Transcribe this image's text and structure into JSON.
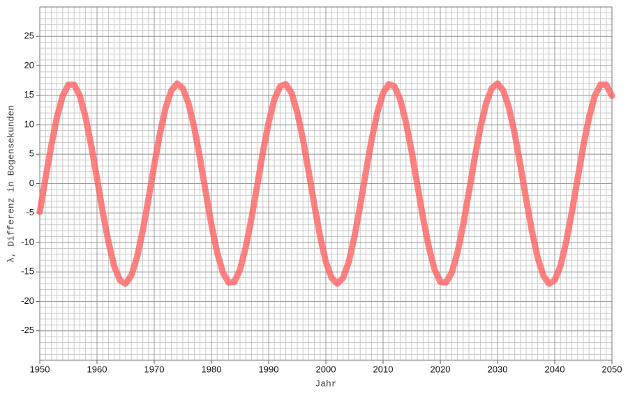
{
  "chart_data": {
    "type": "line",
    "x_label": "Jahr",
    "y_label": "λ, Differenz in Bogensekunden",
    "x": [
      1950,
      1951,
      1952,
      1953,
      1954,
      1955,
      1956,
      1957,
      1958,
      1959,
      1960,
      1961,
      1962,
      1963,
      1964,
      1965,
      1966,
      1967,
      1968,
      1969,
      1970,
      1971,
      1972,
      1973,
      1974,
      1975,
      1976,
      1977,
      1978,
      1979,
      1980,
      1981,
      1982,
      1983,
      1984,
      1985,
      1986,
      1987,
      1988,
      1989,
      1990,
      1991,
      1992,
      1993,
      1994,
      1995,
      1996,
      1997,
      1998,
      1999,
      2000,
      2001,
      2002,
      2003,
      2004,
      2005,
      2006,
      2007,
      2008,
      2009,
      2010,
      2011,
      2012,
      2013,
      2014,
      2015,
      2016,
      2017,
      2018,
      2019,
      2020,
      2021,
      2022,
      2023,
      2024,
      2025,
      2026,
      2027,
      2028,
      2029,
      2030,
      2031,
      2032,
      2033,
      2034,
      2035,
      2036,
      2037,
      2038,
      2039,
      2040,
      2041,
      2042,
      2043,
      2044,
      2045,
      2046,
      2047,
      2048,
      2049,
      2050
    ],
    "series": [
      {
        "color": "#ff5a5a",
        "values": [
          -4.8,
          0.9,
          6.4,
          11.3,
          14.9,
          16.8,
          16.8,
          14.9,
          11.3,
          6.4,
          0.9,
          -4.8,
          -9.9,
          -14.0,
          -16.4,
          -17.0,
          -15.6,
          -12.5,
          -8.0,
          -2.6,
          3.1,
          8.5,
          12.9,
          15.8,
          17.0,
          16.2,
          13.6,
          9.5,
          4.3,
          -1.4,
          -7.0,
          -11.7,
          -15.1,
          -16.8,
          -16.7,
          -14.6,
          -10.8,
          -5.9,
          -0.3,
          5.4,
          10.4,
          14.3,
          16.5,
          16.9,
          15.4,
          12.1,
          7.5,
          2.0,
          -3.7,
          -9.0,
          -13.3,
          -16.0,
          -17.0,
          -16.0,
          -13.3,
          -9.0,
          -3.7,
          2.0,
          7.5,
          12.1,
          15.4,
          16.9,
          16.5,
          14.3,
          10.4,
          5.4,
          -0.3,
          -5.9,
          -10.8,
          -14.6,
          -16.7,
          -16.8,
          -15.1,
          -11.7,
          -7.0,
          -1.4,
          4.3,
          9.5,
          13.6,
          16.2,
          17.0,
          15.8,
          12.9,
          8.5,
          3.1,
          -2.6,
          -8.0,
          -12.5,
          -15.6,
          -17.0,
          -16.4,
          -14.0,
          -9.9,
          -4.8,
          0.9,
          6.4,
          11.3,
          14.9,
          16.8,
          16.8,
          14.9
        ]
      }
    ],
    "xlim": [
      1950,
      2050
    ],
    "xticks": [
      1950,
      1960,
      1970,
      1980,
      1990,
      2000,
      2010,
      2020,
      2030,
      2040,
      2050
    ],
    "ylim": [
      -30,
      30
    ],
    "yticks": [
      -25,
      -20,
      -15,
      -10,
      -5,
      0,
      5,
      10,
      15,
      20,
      25
    ],
    "grid": true,
    "minor_divisions": {
      "x": 10,
      "y": 5
    }
  }
}
